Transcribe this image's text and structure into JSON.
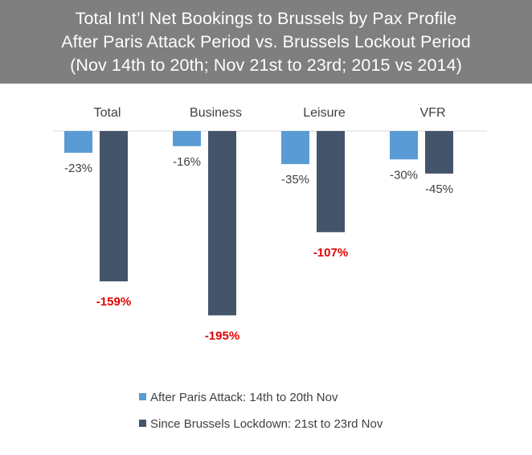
{
  "title": {
    "line1": "Total Int’l Net Bookings to Brussels by Pax Profile",
    "line2": "After Paris Attack Period vs. Brussels Lockout Period",
    "line3": "(Nov 14th to 20th; Nov 21st to 23rd; 2015 vs 2014)"
  },
  "colors": {
    "title_band": "#7f7f7f",
    "series1": "#5b9bd5",
    "series2": "#44546a",
    "highlight_label": "#e00000",
    "axis": "#d9d9d9"
  },
  "chart_data": {
    "type": "bar",
    "categories": [
      "Total",
      "Business",
      "Leisure",
      "VFR"
    ],
    "series": [
      {
        "name": "After Paris Attack: 14th to 20th Nov",
        "values": [
          -23,
          -16,
          -35,
          -30
        ],
        "labels": [
          "-23%",
          "-16%",
          "-35%",
          "-30%"
        ],
        "emphasized": [
          false,
          false,
          false,
          false
        ]
      },
      {
        "name": "Since Brussels Lockdown: 21st to 23rd Nov",
        "values": [
          -159,
          -195,
          -107,
          -45
        ],
        "labels": [
          "-159%",
          "-195%",
          "-107%",
          "-45%"
        ],
        "emphasized": [
          true,
          true,
          true,
          false
        ]
      }
    ],
    "ylim": [
      -200,
      0
    ],
    "legend_position": "bottom",
    "category_labels_position": "top",
    "grid": false
  }
}
